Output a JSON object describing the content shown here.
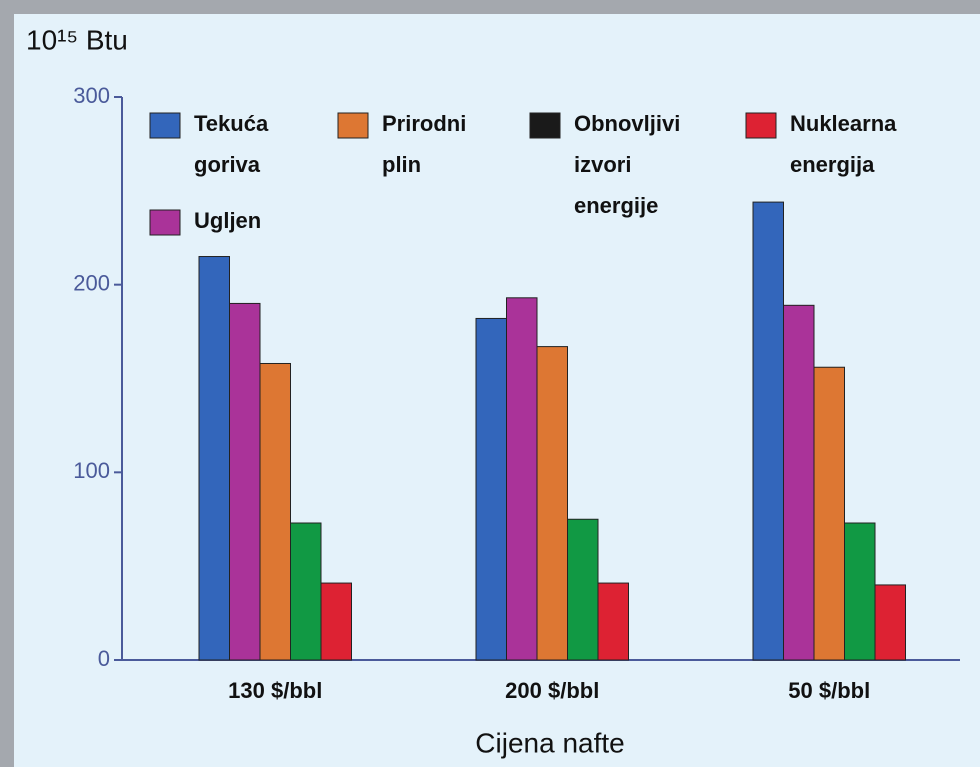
{
  "chart_data": {
    "type": "bar",
    "ylabel": "10¹⁵ Btu",
    "xlabel": "Cijena nafte",
    "categories": [
      "130 $/bbl",
      "200 $/bbl",
      "50 $/bbl"
    ],
    "series": [
      {
        "name": "Tekuća goriva",
        "color": "#3366bb",
        "values": [
          215,
          182,
          244
        ]
      },
      {
        "name": "Ugljen",
        "color": "#aa3399",
        "values": [
          190,
          193,
          189
        ]
      },
      {
        "name": "Prirodni plin",
        "color": "#dd7733",
        "values": [
          158,
          167,
          156
        ]
      },
      {
        "name": "Obnovljivi izvori energije",
        "color": "#119944",
        "legend_color": "#1a1a1a",
        "values": [
          73,
          75,
          73
        ]
      },
      {
        "name": "Nuklearna energija",
        "color": "#dd2233",
        "values": [
          41,
          41,
          40
        ]
      }
    ],
    "ylim": [
      0,
      300
    ],
    "yticks": [
      0,
      100,
      200,
      300
    ],
    "legend": "upper left"
  }
}
